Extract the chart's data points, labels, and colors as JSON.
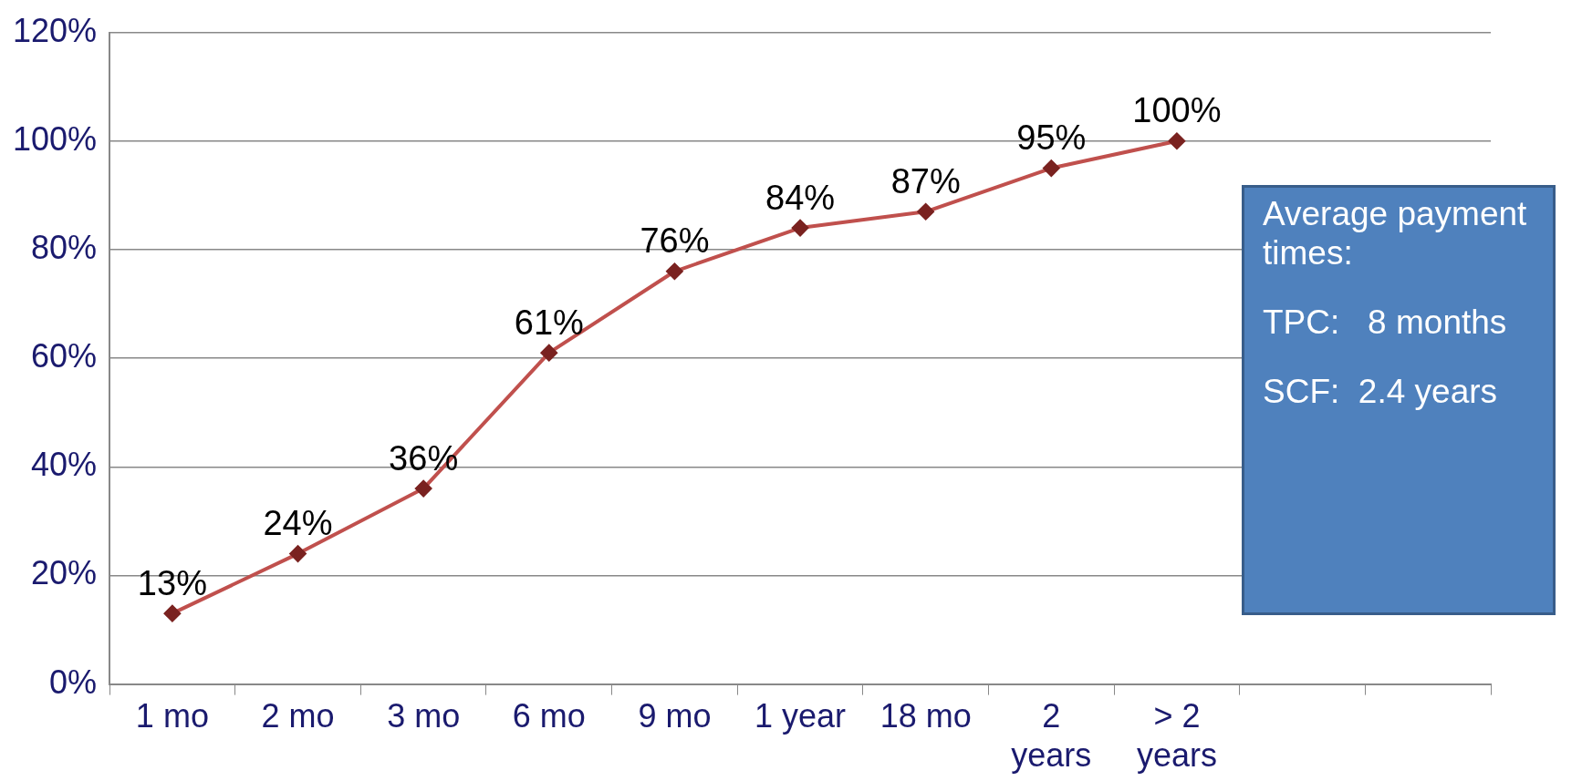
{
  "chart_data": {
    "type": "line",
    "categories": [
      "1 mo",
      "2 mo",
      "3 mo",
      "6 mo",
      "9 mo",
      "1 year",
      "18 mo",
      "2 years",
      "> 2 years",
      null,
      null
    ],
    "series": [
      {
        "color": "#c0504d",
        "values": [
          13,
          24,
          36,
          61,
          76,
          84,
          87,
          95,
          100,
          null,
          null
        ]
      }
    ],
    "ylim": [
      0,
      120
    ],
    "yticks": [
      {
        "value": 0,
        "label": "0%"
      },
      {
        "value": 20,
        "label": "20%"
      },
      {
        "value": 40,
        "label": "40%"
      },
      {
        "value": 60,
        "label": "60%"
      },
      {
        "value": 80,
        "label": "80%"
      },
      {
        "value": 100,
        "label": "100%"
      },
      {
        "value": 120,
        "label": "120%"
      }
    ],
    "value_labels": [
      "13%",
      "24%",
      "36%",
      "61%",
      "76%",
      "84%",
      "87%",
      "95%",
      "100%",
      null,
      null
    ],
    "grid": "y",
    "legend": false,
    "marker": "diamond",
    "line_style": "solid",
    "annotations": [
      "Average payment times:",
      "TPC:   8 months",
      "SCF:  2.4 years"
    ]
  }
}
